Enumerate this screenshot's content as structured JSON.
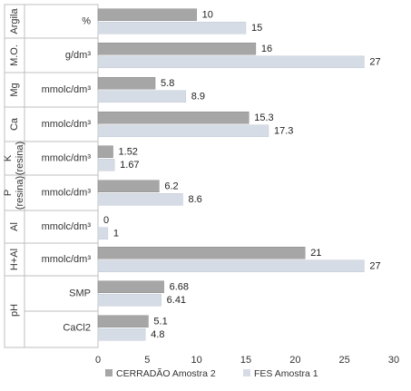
{
  "chart_data": {
    "type": "bar",
    "orientation": "horizontal",
    "xlim": [
      0,
      30
    ],
    "x_ticks": [
      0,
      5,
      10,
      15,
      20,
      25,
      30
    ],
    "grid": false,
    "legend_position": "bottom",
    "series": [
      {
        "name": "CERRADÃO Amostra 2",
        "color": "#a6a6a6"
      },
      {
        "name": "FES Amostra 1",
        "color": "#d6dce5"
      }
    ],
    "groups": [
      {
        "label": "Argila",
        "rows": [
          {
            "unit": "%",
            "values": [
              10,
              15
            ],
            "labels": [
              "10",
              "15"
            ]
          }
        ]
      },
      {
        "label": "M.O.",
        "rows": [
          {
            "unit": "g/dm³",
            "values": [
              16,
              27
            ],
            "labels": [
              "16",
              "27"
            ]
          }
        ]
      },
      {
        "label": "Mg",
        "rows": [
          {
            "unit": "mmolc/dm³",
            "values": [
              5.8,
              8.9
            ],
            "labels": [
              "5.8",
              "8.9"
            ]
          }
        ]
      },
      {
        "label": "Ca",
        "rows": [
          {
            "unit": "mmolc/dm³",
            "values": [
              15.3,
              17.3
            ],
            "labels": [
              "15.3",
              "17.3"
            ]
          }
        ]
      },
      {
        "label": "K (resina)",
        "rows": [
          {
            "unit": "mmolc/dm³",
            "values": [
              1.52,
              1.67
            ],
            "labels": [
              "1.52",
              "1.67"
            ]
          }
        ]
      },
      {
        "label": "P (resina)",
        "rows": [
          {
            "unit": "mmolc/dm³",
            "values": [
              6.2,
              8.6
            ],
            "labels": [
              "6.2",
              "8.6"
            ]
          }
        ]
      },
      {
        "label": "Al",
        "rows": [
          {
            "unit": "mmolc/dm³",
            "values": [
              0,
              1
            ],
            "labels": [
              "0",
              "1"
            ]
          }
        ]
      },
      {
        "label": "H+Al",
        "rows": [
          {
            "unit": "mmolc/dm³",
            "values": [
              21,
              27
            ],
            "labels": [
              "21",
              "27"
            ]
          }
        ]
      },
      {
        "label": "pH",
        "rows": [
          {
            "unit": "SMP",
            "values": [
              6.68,
              6.41
            ],
            "labels": [
              "6.68",
              "6.41"
            ]
          },
          {
            "unit": "CaCl2",
            "values": [
              5.1,
              4.8
            ],
            "labels": [
              "5.1",
              "4.8"
            ]
          }
        ]
      }
    ]
  }
}
